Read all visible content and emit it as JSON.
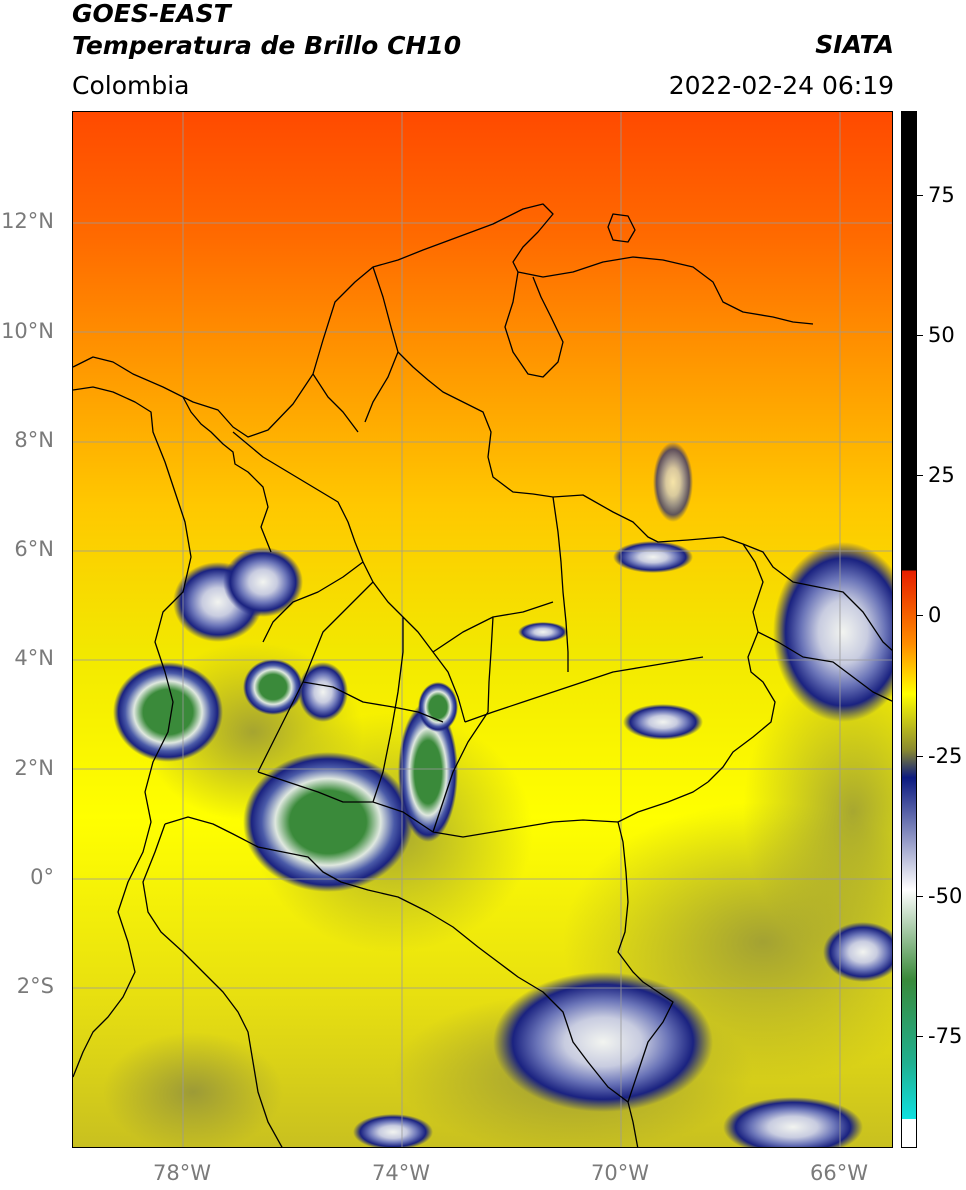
{
  "header": {
    "satellite": "GOES-EAST",
    "product": "Temperatura de Brillo CH10",
    "region": "Colombia",
    "brand": "SIATA",
    "datetime": "2022-02-24 06:19"
  },
  "map": {
    "lat_labels": [
      "12°N",
      "10°N",
      "8°N",
      "6°N",
      "4°N",
      "2°N",
      "0°",
      "2°S"
    ],
    "lon_labels": [
      "78°W",
      "74°W",
      "70°W",
      "66°W"
    ],
    "lat_range": [
      -4.9,
      14.0
    ],
    "lon_range": [
      -80.0,
      -65.0
    ]
  },
  "colorbar": {
    "ticks": [
      "75",
      "50",
      "25",
      "0",
      "-25",
      "-50",
      "-75"
    ],
    "range": [
      -95,
      90
    ],
    "colors": {
      "black": "#000000",
      "red": "#e61e00",
      "orange": "#ff8c00",
      "yellow": "#ffff00",
      "olive": "#8a8a30",
      "navy": "#0c1a80",
      "white": "#ffffff",
      "green": "#3a8a3a",
      "teal": "#20b090",
      "cyan": "#10e0e0"
    }
  }
}
